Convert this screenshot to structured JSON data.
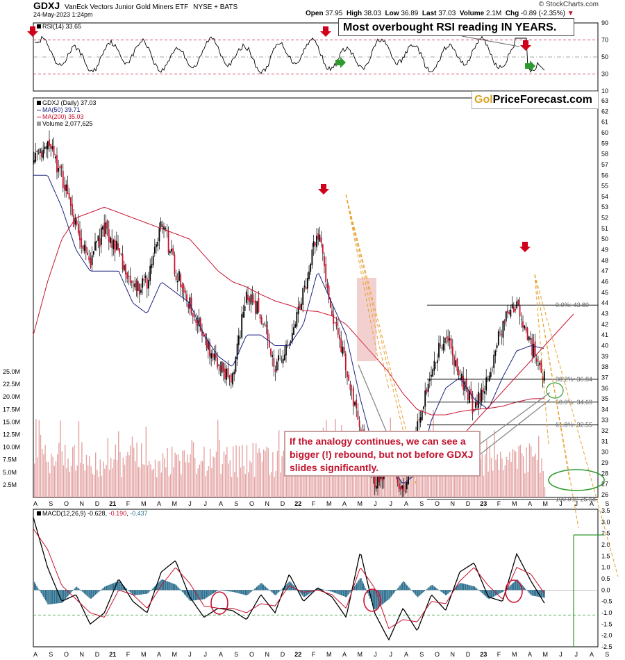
{
  "header": {
    "symbol": "GDXJ",
    "name": "VanEck Vectors Junior Gold Miners ETF",
    "exchange": "NYSE + BATS",
    "date": "24-May-2023 1:24pm",
    "credit": "© StockCharts.com",
    "open_label": "Open",
    "open_value": "37.95",
    "high_label": "High",
    "high_value": "38.03",
    "low_label": "Low",
    "low_value": "36.89",
    "last_label": "Last",
    "last_value": "37.03",
    "volume_label": "Volume",
    "volume_value": "2.1M",
    "chg_label": "Chg",
    "chg_value": "-0.89 (-2.35%)"
  },
  "annotations": {
    "rsi_callout": "Most overbought RSI reading IN YEARS.",
    "brand_gold": "Gol",
    "brand_rest": "PriceForecast.com",
    "main_callout": "If the analogy continues, we can see a bigger (!) rebound, but not before GDXJ slides significantly."
  },
  "legends": {
    "rsi": "RSI(14) 33.65",
    "price": "GDXJ (Daily) 37.03",
    "ma50": "MA(50) 39.71",
    "ma200": "MA(200) 35.03",
    "volume": "Volume 2,077,625",
    "macd_label": "MACD(12,26,9)",
    "macd_v1": "-0.628",
    "macd_v2": "-0.190",
    "macd_v3": "-0.437"
  },
  "colors": {
    "ma50": "#1a237e",
    "ma200": "#c8102e",
    "up_arrow": "#2e9a2e",
    "down_arrow": "#d0021b",
    "histogram": "#2b6f8f",
    "volume_bars": "#e4a3a3",
    "fib_line": "#000000",
    "ellipse": "#2e9a2e",
    "forecast_dash": "#e8a030"
  },
  "chart_data": [
    {
      "type": "line",
      "title": "RSI(14) 33.65",
      "ylim": [
        10,
        90
      ],
      "yticks": [
        10,
        30,
        50,
        70,
        90
      ],
      "last_value": 33.65,
      "reference_levels": [
        70,
        30
      ]
    },
    {
      "type": "candlestick",
      "title": "GDXJ (Daily) 37.03",
      "ylim": [
        26,
        63
      ],
      "yticks": [
        26,
        27,
        28,
        29,
        30,
        31,
        32,
        33,
        34,
        35,
        36,
        37,
        38,
        39,
        40,
        41,
        42,
        43,
        44,
        45,
        46,
        47,
        48,
        49,
        50,
        51,
        52,
        53,
        54,
        55,
        56,
        57,
        58,
        59,
        60,
        61,
        62,
        63
      ],
      "xticks": [
        "A",
        "S",
        "O",
        "N",
        "D",
        "21",
        "F",
        "M",
        "A",
        "M",
        "J",
        "J",
        "A",
        "S",
        "O",
        "N",
        "D",
        "22",
        "F",
        "M",
        "A",
        "M",
        "J",
        "J",
        "A",
        "S",
        "O",
        "N",
        "D",
        "23",
        "F",
        "M",
        "A",
        "M",
        "J",
        "J",
        "A",
        "S"
      ],
      "close_path_approx": [
        57.5,
        59,
        56,
        51,
        48,
        51,
        49,
        45,
        46,
        52,
        47,
        44,
        41,
        38,
        37,
        45,
        43,
        38,
        40,
        45,
        51,
        43,
        38,
        32,
        27,
        29,
        26,
        32,
        38,
        41,
        37,
        34,
        37,
        42,
        43.8,
        40,
        37.03
      ],
      "series": [
        {
          "name": "MA(50) 39.71",
          "values": [
            56,
            56,
            53,
            49,
            47,
            47,
            47,
            44,
            43,
            46,
            45,
            44,
            41,
            39,
            38,
            41,
            41,
            40,
            40,
            42,
            47,
            44,
            41,
            35,
            30,
            29,
            27,
            28,
            33,
            36,
            37,
            35,
            34,
            37,
            39.5,
            40,
            39.71
          ]
        },
        {
          "name": "MA(200) 35.03",
          "values": [
            41,
            46,
            50,
            52,
            52.5,
            53,
            52.5,
            52,
            51.5,
            51,
            50.5,
            50,
            48.5,
            47,
            46,
            45.5,
            44.8,
            44.2,
            43.8,
            43.3,
            43.2,
            42.8,
            42,
            40.5,
            39,
            37.5,
            35.5,
            34,
            33.5,
            33.5,
            33.8,
            34,
            34.1,
            34.3,
            34.7,
            35,
            35.03
          ]
        }
      ],
      "fibonacci": [
        {
          "label": "0.0%: 43.80",
          "value": 43.8
        },
        {
          "label": "38.2%: 36.84",
          "value": 36.84
        },
        {
          "label": "50.0%: 34.69",
          "value": 34.69
        },
        {
          "label": "61.8%: 32.55",
          "value": 32.55
        },
        {
          "label": "100.0%: 25.58",
          "value": 25.58
        }
      ]
    },
    {
      "type": "bar",
      "title": "Volume 2,077,625",
      "ylim": [
        0,
        25000000
      ],
      "yticks": [
        "2.5M",
        "5.0M",
        "7.5M",
        "10.0M",
        "12.5M",
        "15.0M",
        "17.5M",
        "20.0M",
        "22.5M",
        "25.0M"
      ],
      "last_value": 2077625
    },
    {
      "type": "line",
      "title": "MACD(12,26,9) -0.628, -0.190, -0.437",
      "ylim": [
        -2.5,
        3.5
      ],
      "yticks": [
        "-2.5",
        "-2.0",
        "-1.5",
        "-1.0",
        "-0.5",
        "0.0",
        "0.5",
        "1.0",
        "1.5",
        "2.0",
        "2.5",
        "3.0",
        "3.5"
      ],
      "series": [
        {
          "name": "MACD",
          "values": [
            3.2,
            1.0,
            -0.5,
            -0.2,
            -1.5,
            -1.0,
            0.5,
            -0.5,
            -1.0,
            0.8,
            1.3,
            -0.3,
            -1.2,
            -0.8,
            -0.9,
            -1.3,
            -0.2,
            -1.0,
            0.7,
            -0.5,
            0.1,
            -0.3,
            -1.2,
            1.7,
            -1.0,
            -2.2,
            -0.8,
            -1.8,
            -0.2,
            -0.9,
            0.8,
            1.2,
            -0.3,
            -0.5,
            1.6,
            0.4,
            -0.628
          ]
        },
        {
          "name": "Signal",
          "values": [
            2.7,
            1.8,
            0.2,
            -0.4,
            -1.0,
            -1.2,
            0,
            -0.2,
            -0.8,
            0.2,
            1.0,
            0.3,
            -0.7,
            -0.8,
            -0.8,
            -1.0,
            -0.6,
            -0.7,
            0.2,
            -0.1,
            0.0,
            -0.2,
            -0.8,
            1.0,
            0.1,
            -1.7,
            -1.3,
            -1.4,
            -0.5,
            -0.6,
            0.4,
            1.0,
            0.2,
            -0.4,
            1.0,
            0.7,
            -0.19
          ]
        }
      ],
      "histogram_last": -0.437,
      "reference_level": -1.1
    }
  ]
}
